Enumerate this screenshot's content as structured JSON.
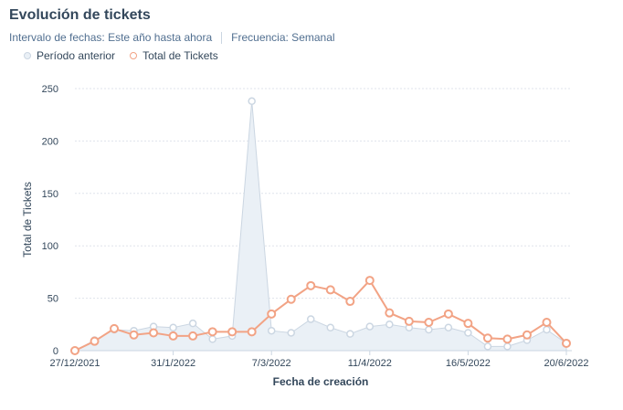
{
  "header": {
    "title": "Evolución de tickets",
    "date_range": "Intervalo de fechas: Este año hasta ahora",
    "frequency": "Frecuencia: Semanal"
  },
  "colors": {
    "previous": "#cbd6e2",
    "previous_fill": "#eaf0f6",
    "current": "#f2a385",
    "grid": "#dfe3eb"
  },
  "chart_data": {
    "type": "line",
    "xlabel": "Fecha de creación",
    "ylabel": "Total de Tickets",
    "ylim": [
      0,
      250
    ],
    "yticks": [
      0,
      50,
      100,
      150,
      200,
      250
    ],
    "x_tick_labels": [
      {
        "index": 0,
        "label": "27/12/2021"
      },
      {
        "index": 5,
        "label": "31/1/2022"
      },
      {
        "index": 10,
        "label": "7/3/2022"
      },
      {
        "index": 15,
        "label": "11/4/2022"
      },
      {
        "index": 20,
        "label": "16/5/2022"
      },
      {
        "index": 25,
        "label": "20/6/2022"
      }
    ],
    "grid": "horizontal",
    "legend_position": "top-left",
    "series": [
      {
        "name": "Período anterior",
        "style": "area",
        "values": [
          0,
          10,
          20,
          19,
          23,
          22,
          26,
          11,
          14,
          238,
          19,
          17,
          30,
          22,
          16,
          23,
          25,
          22,
          20,
          22,
          17,
          4,
          4,
          10,
          20,
          7
        ]
      },
      {
        "name": "Total de Tickets",
        "style": "line",
        "values": [
          0,
          9,
          21,
          15,
          17,
          14,
          14,
          18,
          18,
          18,
          35,
          49,
          62,
          58,
          47,
          67,
          36,
          28,
          27,
          35,
          26,
          12,
          11,
          15,
          27,
          7
        ]
      }
    ]
  }
}
